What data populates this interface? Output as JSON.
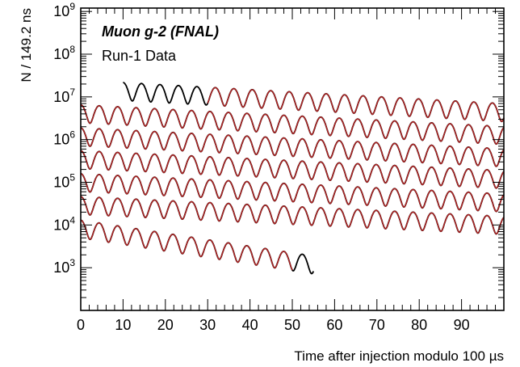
{
  "chart_data": {
    "type": "line",
    "xlabel": "Time after injection modulo 100 µs",
    "ylabel": "N / 149.2 ns",
    "xlim": [
      0,
      100
    ],
    "ylim": [
      100,
      1200000000
    ],
    "yscale": "log",
    "grid": false,
    "x_ticks": [
      "0",
      "10",
      "20",
      "30",
      "40",
      "50",
      "60",
      "70",
      "80",
      "90"
    ],
    "y_tick_exponents": [
      "3",
      "4",
      "5",
      "6",
      "7",
      "8",
      "9"
    ],
    "y_tick_base": "10",
    "annotations": {
      "title": "Muon g-2 (FNAL)",
      "subtitle": "Run-1 Data"
    },
    "colors": {
      "data": "#000000",
      "fit": "#b22222",
      "frame": "#000000"
    },
    "wiggle_period_us": 4.365,
    "series": [
      {
        "x_start": 10,
        "x_end": 100,
        "y_center": 15000000,
        "y_end_center": 4800000,
        "relative_amplitude": 0.45,
        "fit_from": 30
      },
      {
        "x_start": 0,
        "x_end": 100,
        "y_center": 4500000,
        "y_end_center": 1400000,
        "relative_amplitude": 0.45,
        "fit_from": 0
      },
      {
        "x_start": 0,
        "x_end": 100,
        "y_center": 1300000,
        "y_end_center": 420000,
        "relative_amplitude": 0.45,
        "fit_from": 0
      },
      {
        "x_start": 0,
        "x_end": 100,
        "y_center": 380000,
        "y_end_center": 130000,
        "relative_amplitude": 0.45,
        "fit_from": 0
      },
      {
        "x_start": 0,
        "x_end": 100,
        "y_center": 110000,
        "y_end_center": 37000,
        "relative_amplitude": 0.45,
        "fit_from": 0
      },
      {
        "x_start": 0,
        "x_end": 100,
        "y_center": 32000,
        "y_end_center": 11000,
        "relative_amplitude": 0.45,
        "fit_from": 0
      },
      {
        "x_start": 0,
        "x_end": 55,
        "y_center": 9000,
        "y_end_center": 1300,
        "relative_amplitude": 0.45,
        "fit_from": 0,
        "fit_to": 50
      }
    ]
  }
}
